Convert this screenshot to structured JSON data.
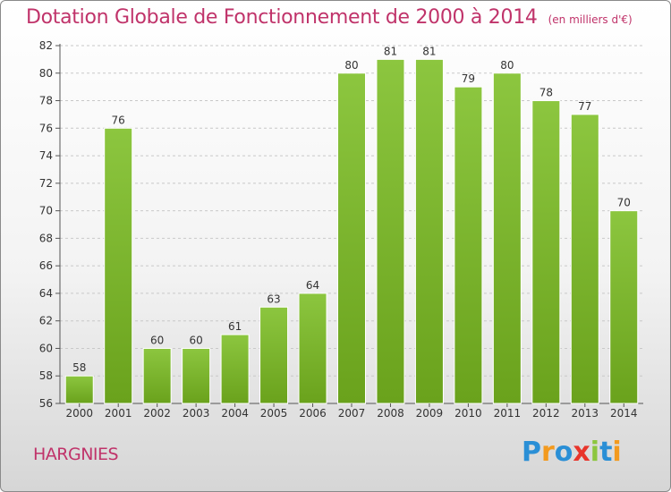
{
  "chart_data": {
    "type": "bar",
    "title": "Dotation Globale de Fonctionnement de 2000 à 2014",
    "subtitle": "(en milliers d'€)",
    "categories": [
      "2000",
      "2001",
      "2002",
      "2003",
      "2004",
      "2005",
      "2006",
      "2007",
      "2008",
      "2009",
      "2010",
      "2011",
      "2012",
      "2013",
      "2014"
    ],
    "values": [
      58,
      76,
      60,
      60,
      61,
      63,
      64,
      80,
      81,
      81,
      79,
      80,
      78,
      77,
      70
    ],
    "ylim": [
      56,
      82
    ],
    "yticks": [
      56,
      58,
      60,
      62,
      64,
      66,
      68,
      70,
      72,
      74,
      76,
      78,
      80,
      82
    ],
    "xlabel": "",
    "ylabel": "",
    "bar_color": "#8cc63f",
    "bar_color_dark": "#6aa21c"
  },
  "commune": "HARGNIES",
  "logo": {
    "letters": [
      "P",
      "r",
      "o",
      "x",
      "i",
      "t",
      "i"
    ],
    "colors": [
      "#2a8fd6",
      "#f39a1e",
      "#2a8fd6",
      "#e8352b",
      "#8cc63f",
      "#2a8fd6",
      "#f39a1e"
    ]
  }
}
